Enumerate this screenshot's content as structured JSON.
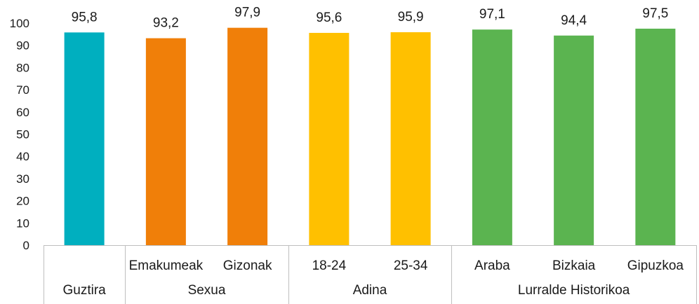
{
  "chart_data": {
    "type": "bar",
    "ylim": [
      0,
      100
    ],
    "yticks": [
      0,
      10,
      20,
      30,
      40,
      50,
      60,
      70,
      80,
      90,
      100
    ],
    "grid": false,
    "value_labels": [
      "95,8",
      "93,2",
      "97,9",
      "95,6",
      "95,9",
      "97,1",
      "94,4",
      "97,5"
    ],
    "bars": [
      {
        "category": "",
        "group": "Guztira",
        "value": 95.8,
        "color": "#00AFBF"
      },
      {
        "category": "Emakumeak",
        "group": "Sexua",
        "value": 93.2,
        "color": "#F07F09"
      },
      {
        "category": "Gizonak",
        "group": "Sexua",
        "value": 97.9,
        "color": "#F07F09"
      },
      {
        "category": "18-24",
        "group": "Adina",
        "value": 95.6,
        "color": "#FFC000"
      },
      {
        "category": "25-34",
        "group": "Adina",
        "value": 95.9,
        "color": "#FFC000"
      },
      {
        "category": "Araba",
        "group": "Lurralde Historikoa",
        "value": 97.1,
        "color": "#5BB450"
      },
      {
        "category": "Bizkaia",
        "group": "Lurralde Historikoa",
        "value": 94.4,
        "color": "#5BB450"
      },
      {
        "category": "Gipuzkoa",
        "group": "Lurralde Historikoa",
        "value": 97.5,
        "color": "#5BB450"
      }
    ],
    "groups": [
      "Guztira",
      "Sexua",
      "Adina",
      "Lurralde Historikoa"
    ]
  }
}
